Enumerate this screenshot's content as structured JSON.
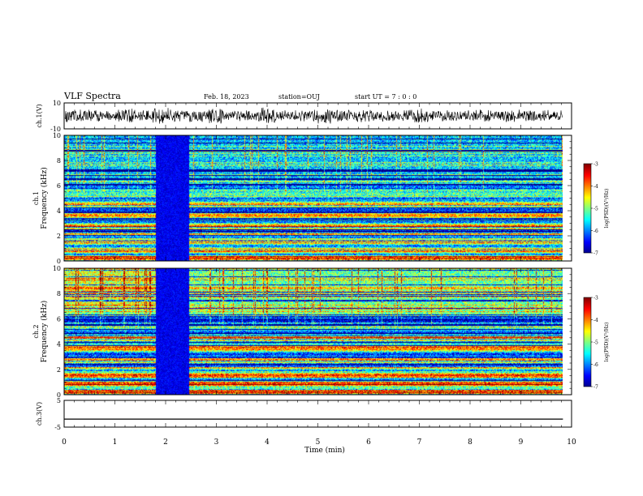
{
  "header": {
    "title": "VLF Spectra",
    "date": "Feb. 18, 2023",
    "station": "station=OUJ",
    "start_ut": "start UT =  7 : 0 : 0"
  },
  "chart_data": [
    {
      "type": "line",
      "panel": "ch1-waveform",
      "ylabel": "ch.1(V)",
      "ylim": [
        -10,
        10
      ],
      "yticks": [
        "10",
        "-10"
      ],
      "x_extent_min": [
        0,
        9.83
      ],
      "description_level": "dense noisy waveform, envelope roughly ±5 V, bursts near 2, 3, 4, 5, 7 min"
    },
    {
      "type": "heatmap",
      "panel": "ch1-spectrogram",
      "ylabel": "ch.1 Frequency (kHz)",
      "ylim": [
        0,
        10
      ],
      "yticks": [
        "0",
        "2",
        "4",
        "6",
        "8",
        "10"
      ],
      "xlim": [
        0,
        10
      ],
      "colorbar": {
        "label": "log(PSD)(V²/Hz)",
        "range": [
          -7,
          -3
        ],
        "ticks": [
          "-3",
          "-4",
          "-5",
          "-6",
          "-7"
        ]
      },
      "dark_gap_min": [
        1.8,
        2.45
      ]
    },
    {
      "type": "heatmap",
      "panel": "ch2-spectrogram",
      "ylabel": "ch.2 Frequency (kHz)",
      "ylim": [
        0,
        10
      ],
      "yticks": [
        "0",
        "2",
        "4",
        "6",
        "8",
        "10"
      ],
      "xlim": [
        0,
        10
      ],
      "colorbar": {
        "label": "log(PSD)(V²/Hz)",
        "range": [
          -7,
          -3
        ],
        "ticks": [
          "-3",
          "-4",
          "-5",
          "-6",
          "-7"
        ]
      },
      "dark_gap_min": [
        1.8,
        2.45
      ]
    },
    {
      "type": "line",
      "panel": "ch3-waveform",
      "ylabel": "ch.3(V)",
      "ylim": [
        -5,
        5
      ],
      "yticks": [
        "5",
        "-5"
      ],
      "level_value": -2
    }
  ],
  "xaxis": {
    "label": "Time (min)",
    "ticks": [
      "0",
      "1",
      "2",
      "3",
      "4",
      "5",
      "6",
      "7",
      "8",
      "9",
      "10"
    ]
  },
  "colors": {
    "jet": [
      "#00008f",
      "#0000ff",
      "#007fff",
      "#00ffff",
      "#7fff7f",
      "#ffff00",
      "#ff7f00",
      "#ff0000",
      "#7f0000"
    ]
  }
}
